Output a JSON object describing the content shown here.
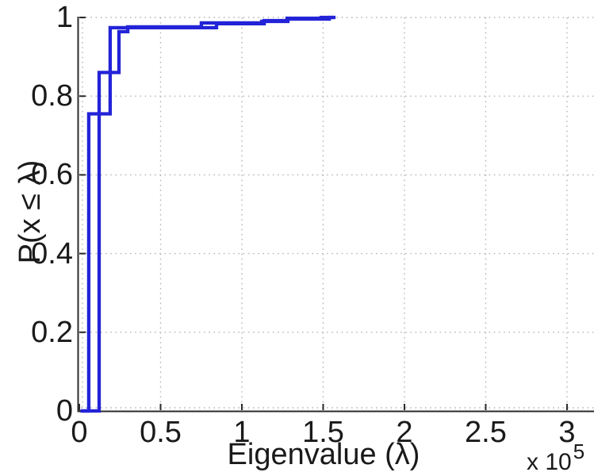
{
  "chart_data": {
    "type": "line",
    "subtype": "empirical-cdf-stairs",
    "title": "",
    "xlabel": "Eigenvalue (λ)",
    "ylabel": "P(x ≤ λ)",
    "x_multiplier": {
      "prefix": "x 10",
      "exponent": "5"
    },
    "x_unit_scale": 100000,
    "xlim": [
      0,
      3.166
    ],
    "ylim": [
      0,
      1
    ],
    "xticks": [
      0,
      0.5,
      1,
      1.5,
      2,
      2.5,
      3
    ],
    "xtick_labels": [
      "0",
      "0.5",
      "1",
      "1.5",
      "2",
      "2.5",
      "3"
    ],
    "yticks": [
      0,
      0.2,
      0.4,
      0.6,
      0.8,
      1
    ],
    "ytick_labels": [
      "0",
      "0.2",
      "0.4",
      "0.6",
      "0.8",
      "1"
    ],
    "grid": true,
    "grid_style": "dotted",
    "legend": null,
    "line_color": "#2323d8",
    "axis_color": "#2b2b2b",
    "grid_color": "#b5b5b5",
    "series": [
      {
        "name": "ecdf-curve-1",
        "points": [
          [
            0.008,
            0
          ],
          [
            0.058,
            0
          ],
          [
            0.058,
            0.755
          ],
          [
            0.19,
            0.755
          ],
          [
            0.19,
            0.974
          ],
          [
            0.844,
            0.974
          ],
          [
            0.844,
            0.984
          ],
          [
            1.137,
            0.984
          ],
          [
            1.137,
            0.992
          ],
          [
            1.278,
            0.992
          ],
          [
            1.278,
            0.998
          ],
          [
            1.488,
            0.998
          ],
          [
            1.488,
            1.0
          ],
          [
            1.566,
            1.0
          ]
        ]
      },
      {
        "name": "ecdf-curve-2",
        "points": [
          [
            0.008,
            0
          ],
          [
            0.122,
            0
          ],
          [
            0.122,
            0.86
          ],
          [
            0.244,
            0.86
          ],
          [
            0.244,
            0.964
          ],
          [
            0.298,
            0.964
          ],
          [
            0.298,
            0.976
          ],
          [
            0.751,
            0.976
          ],
          [
            0.751,
            0.986
          ],
          [
            1.122,
            0.986
          ],
          [
            1.122,
            0.99
          ],
          [
            1.283,
            0.99
          ],
          [
            1.283,
            0.996
          ],
          [
            1.537,
            0.996
          ],
          [
            1.537,
            1.0
          ],
          [
            1.576,
            1.0
          ]
        ]
      }
    ]
  }
}
